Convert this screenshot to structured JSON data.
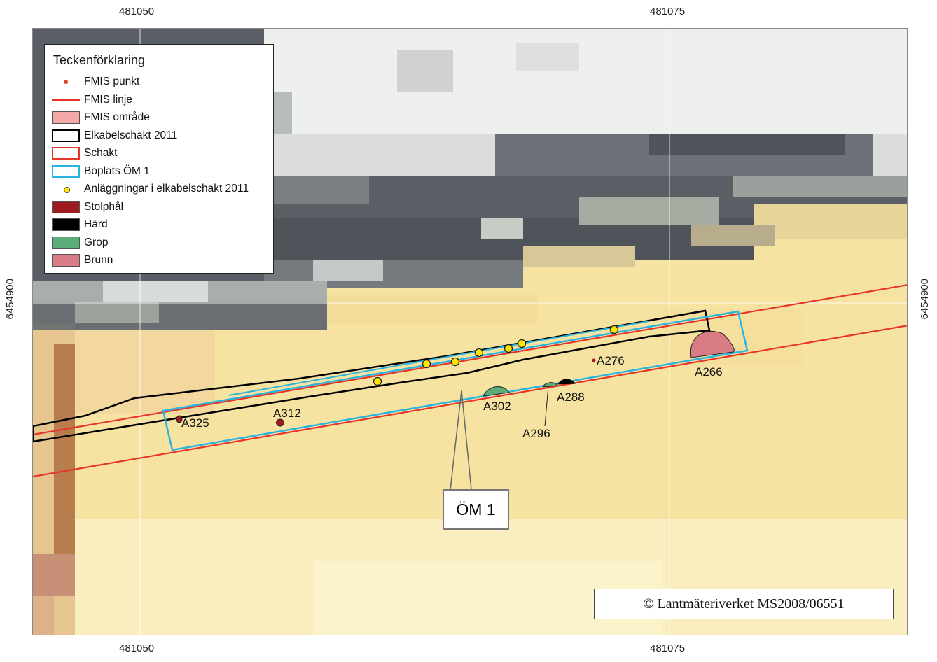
{
  "coordinates": {
    "x_top_left": "481050",
    "x_top_right": "481075",
    "x_bottom_left": "481050",
    "x_bottom_right": "481075",
    "y_left": "6454900",
    "y_right": "6454900"
  },
  "legend": {
    "title": "Teckenförklaring",
    "items": [
      {
        "label": "FMIS punkt",
        "symbol": "dot-red",
        "color": "#e0452a"
      },
      {
        "label": "FMIS linje",
        "symbol": "line-red",
        "color": "#e8352a"
      },
      {
        "label": "FMIS område",
        "symbol": "fill-pink",
        "color": "#f5a8a8"
      },
      {
        "label": "Elkabelschakt 2011",
        "symbol": "outline-black",
        "color": "#000000"
      },
      {
        "label": "Schakt",
        "symbol": "outline-red",
        "color": "#e8352a"
      },
      {
        "label": "Boplats ÖM 1",
        "symbol": "outline-cyan",
        "color": "#2ab4e0"
      },
      {
        "label": "Anläggningar i elkabelschakt 2011",
        "symbol": "dot-yellow",
        "color": "#ffe600"
      },
      {
        "label": "Stolphål",
        "symbol": "fill-darkred",
        "color": "#9e1b20"
      },
      {
        "label": "Härd",
        "symbol": "fill-black",
        "color": "#000000"
      },
      {
        "label": "Grop",
        "symbol": "fill-green",
        "color": "#5aac78"
      },
      {
        "label": "Brunn",
        "symbol": "fill-rose",
        "color": "#d97c86"
      }
    ]
  },
  "features": {
    "A325": "A325",
    "A312": "A312",
    "A302": "A302",
    "A296": "A296",
    "A288": "A288",
    "A276": "A276",
    "A266": "A266"
  },
  "callout": "ÖM 1",
  "copyright": "© Lantmäteriverket MS2008/06551",
  "colors": {
    "boplats": "#2ab4e0",
    "fmis_line": "#e8352a",
    "stolphal": "#9e1b20",
    "grop": "#5aac78",
    "brunn": "#d97c86",
    "anlaggning": "#ffe600"
  }
}
